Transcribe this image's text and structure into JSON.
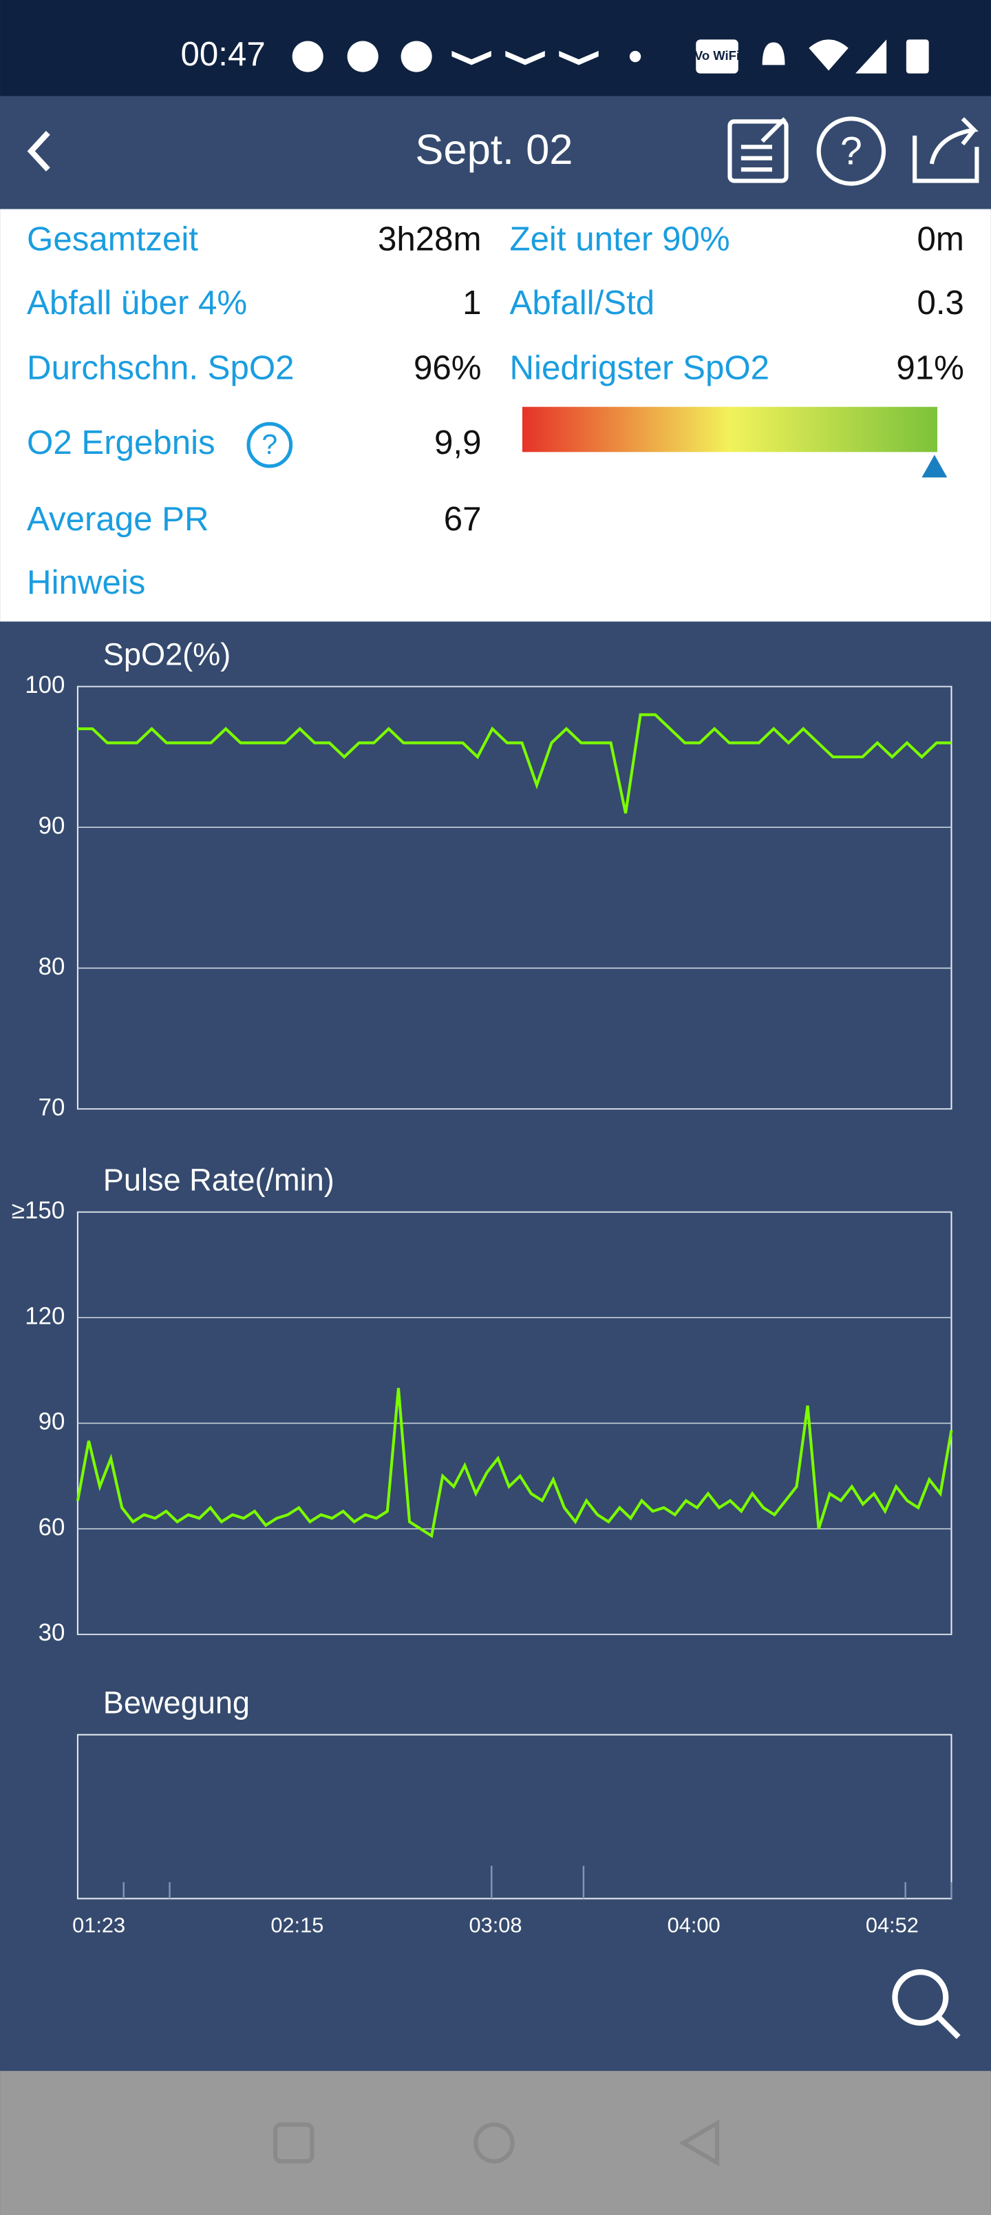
{
  "status": {
    "time": "00:47",
    "wifi": "Vo WiFi"
  },
  "header": {
    "title": "Sept. 02"
  },
  "stats": [
    [
      {
        "label": "Gesamtzeit",
        "value": "3h28m"
      },
      {
        "label": "Zeit unter 90%",
        "value": "0m"
      }
    ],
    [
      {
        "label": "Abfall über 4%",
        "value": "1"
      },
      {
        "label": "Abfall/Std",
        "value": "0.3"
      }
    ],
    [
      {
        "label": "Durchschn. SpO2",
        "value": "96%"
      },
      {
        "label": "Niedrigster SpO2",
        "value": "91%"
      }
    ],
    [
      {
        "label": "O2 Ergebnis",
        "value": "9,9"
      }
    ],
    [
      {
        "label": "Average PR",
        "value": "67"
      }
    ],
    [
      {
        "label": "Hinweis"
      }
    ]
  ],
  "xticks": [
    "01:23",
    "02:15",
    "03:08",
    "04:00",
    "04:52"
  ],
  "chart_data": [
    {
      "type": "line",
      "title": "SpO2(%)",
      "color": "#7cfc00",
      "ylim": [
        70,
        100
      ],
      "yticks": [
        70,
        80,
        90,
        100
      ],
      "grid": true,
      "values": [
        97,
        97,
        96,
        96,
        96,
        97,
        96,
        96,
        96,
        96,
        97,
        96,
        96,
        96,
        96,
        97,
        96,
        96,
        95,
        96,
        96,
        97,
        96,
        96,
        96,
        96,
        96,
        95,
        97,
        96,
        96,
        93,
        96,
        97,
        96,
        96,
        96,
        91,
        98,
        98,
        97,
        96,
        96,
        97,
        96,
        96,
        96,
        97,
        96,
        97,
        96,
        95,
        95,
        95,
        96,
        95,
        96,
        95,
        96,
        96
      ]
    },
    {
      "type": "line",
      "title": "Pulse Rate(/min)",
      "color": "#7cfc00",
      "ylim": [
        30,
        150
      ],
      "yticks": [
        30,
        60,
        90,
        120,
        {
          "value": 150,
          "label": "≥150"
        }
      ],
      "grid": true,
      "values": [
        68,
        85,
        72,
        80,
        66,
        62,
        64,
        63,
        65,
        62,
        64,
        63,
        66,
        62,
        64,
        63,
        65,
        61,
        63,
        64,
        66,
        62,
        64,
        63,
        65,
        62,
        64,
        63,
        65,
        100,
        62,
        60,
        58,
        75,
        72,
        78,
        70,
        76,
        80,
        72,
        75,
        70,
        68,
        74,
        66,
        62,
        68,
        64,
        62,
        66,
        63,
        68,
        65,
        66,
        64,
        68,
        66,
        70,
        66,
        68,
        65,
        70,
        66,
        64,
        68,
        72,
        95,
        60,
        70,
        68,
        72,
        67,
        70,
        65,
        72,
        68,
        66,
        74,
        70,
        88
      ]
    },
    {
      "type": "bar",
      "title": "Bewegung",
      "color": "#7f95b5",
      "ylim": [
        0,
        10
      ],
      "grid": false,
      "values": [
        0,
        1,
        1,
        0,
        0,
        0,
        0,
        0,
        0,
        2,
        0,
        2,
        0,
        0,
        0,
        0,
        0,
        0,
        1,
        1
      ]
    }
  ]
}
